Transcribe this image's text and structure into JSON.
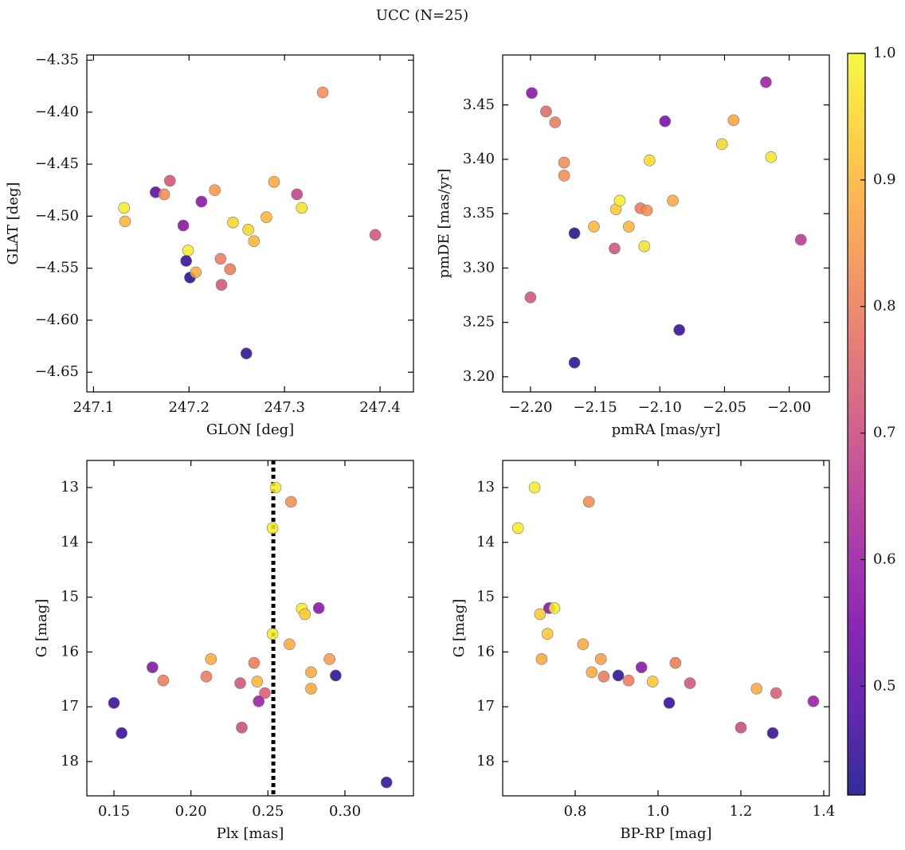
{
  "title": "UCC (N=25)",
  "chart_data": [
    {
      "type": "scatter",
      "xlabel": "GLON [deg]",
      "ylabel": "GLAT [deg]",
      "x": [
        247.34,
        247.132,
        247.133,
        247.165,
        247.174,
        247.18,
        247.213,
        247.194,
        247.199,
        247.197,
        247.201,
        247.207,
        247.227,
        247.233,
        247.243,
        247.234,
        247.246,
        247.262,
        247.268,
        247.281,
        247.289,
        247.313,
        247.318,
        247.26,
        247.395
      ],
      "y": [
        -4.381,
        -4.492,
        -4.505,
        -4.477,
        -4.479,
        -4.466,
        -4.486,
        -4.509,
        -4.533,
        -4.543,
        -4.559,
        -4.554,
        -4.475,
        -4.541,
        -4.551,
        -4.566,
        -4.506,
        -4.513,
        -4.524,
        -4.501,
        -4.467,
        -4.479,
        -4.492,
        -4.632,
        -4.518
      ],
      "c": [
        0.83,
        0.98,
        0.9,
        0.5,
        0.83,
        0.72,
        0.57,
        0.57,
        0.98,
        0.45,
        0.43,
        0.88,
        0.85,
        0.8,
        0.8,
        0.72,
        0.95,
        0.95,
        0.9,
        0.9,
        0.88,
        0.68,
        0.97,
        0.44,
        0.72
      ],
      "xlim": [
        247.093,
        247.435
      ],
      "ylim": [
        -4.669,
        -4.345
      ],
      "xticks": [
        247.1,
        247.2,
        247.3,
        247.4
      ],
      "yticks": [
        {
          "value": -4.65,
          "label": "−4.65"
        },
        {
          "value": -4.6,
          "label": "−4.60"
        },
        {
          "value": -4.55,
          "label": "−4.55"
        },
        {
          "value": -4.5,
          "label": "−4.50"
        },
        {
          "value": -4.45,
          "label": "−4.45"
        },
        {
          "value": -4.4,
          "label": "−4.40"
        },
        {
          "value": -4.35,
          "label": "−4.35"
        }
      ]
    },
    {
      "type": "scatter",
      "xlabel": "pmRA [mas/yr]",
      "ylabel": "pmDE [mas/yr]",
      "x": [
        -2.199,
        -2.188,
        -2.181,
        -2.174,
        -2.174,
        -2.2,
        -2.166,
        -2.166,
        -2.151,
        -2.135,
        -2.134,
        -2.131,
        -2.124,
        -2.115,
        -2.11,
        -2.112,
        -2.108,
        -2.096,
        -2.09,
        -2.085,
        -2.052,
        -2.043,
        -2.018,
        -2.014,
        -1.991
      ],
      "y": [
        3.461,
        3.444,
        3.434,
        3.397,
        3.385,
        3.273,
        3.213,
        3.332,
        3.338,
        3.318,
        3.354,
        3.362,
        3.338,
        3.355,
        3.353,
        3.32,
        3.399,
        3.435,
        3.362,
        3.243,
        3.414,
        3.436,
        3.471,
        3.402,
        3.326
      ],
      "c": [
        0.57,
        0.76,
        0.8,
        0.83,
        0.83,
        0.72,
        0.44,
        0.43,
        0.9,
        0.72,
        0.93,
        0.98,
        0.9,
        0.8,
        0.83,
        0.97,
        0.96,
        0.55,
        0.88,
        0.45,
        0.95,
        0.87,
        0.6,
        0.97,
        0.66
      ],
      "xlim": [
        -2.2215,
        -1.969
      ],
      "ylim": [
        3.186,
        3.496
      ],
      "xticks": [
        {
          "value": -2.2,
          "label": "−2.20"
        },
        {
          "value": -2.15,
          "label": "−2.15"
        },
        {
          "value": -2.1,
          "label": "−2.10"
        },
        {
          "value": -2.05,
          "label": "−2.05"
        },
        {
          "value": -2.0,
          "label": "−2.00"
        }
      ],
      "yticks": [
        {
          "value": 3.2,
          "label": "3.20"
        },
        3.25,
        {
          "value": 3.3,
          "label": "3.30"
        },
        3.35,
        {
          "value": 3.4,
          "label": "3.40"
        },
        3.45
      ]
    },
    {
      "type": "scatter",
      "xlabel": "Plx [mas]",
      "ylabel": "G [mag]",
      "x": [
        0.255,
        0.265,
        0.253,
        0.272,
        0.274,
        0.283,
        0.253,
        0.264,
        0.213,
        0.29,
        0.175,
        0.241,
        0.278,
        0.294,
        0.21,
        0.182,
        0.232,
        0.243,
        0.278,
        0.248,
        0.244,
        0.15,
        0.233,
        0.155,
        0.327
      ],
      "y": [
        13.0,
        13.26,
        13.74,
        15.21,
        15.31,
        15.2,
        15.67,
        15.86,
        16.13,
        16.13,
        16.28,
        16.2,
        16.37,
        16.43,
        16.45,
        16.52,
        16.57,
        16.54,
        16.67,
        16.75,
        16.9,
        16.93,
        17.38,
        17.48,
        18.38
      ],
      "c": [
        0.98,
        0.83,
        0.98,
        0.98,
        0.93,
        0.57,
        0.98,
        0.88,
        0.88,
        0.86,
        0.57,
        0.8,
        0.88,
        0.44,
        0.8,
        0.8,
        0.72,
        0.9,
        0.88,
        0.74,
        0.6,
        0.45,
        0.7,
        0.45,
        0.45
      ],
      "xlim": [
        0.1324,
        0.3445
      ],
      "ylim": [
        18.625,
        12.506
      ],
      "xticks": [
        0.15,
        {
          "value": 0.2,
          "label": "0.20"
        },
        0.25,
        {
          "value": 0.3,
          "label": "0.30"
        }
      ],
      "yticks": [
        13,
        14,
        15,
        16,
        17,
        18
      ],
      "vline": 0.2535
    },
    {
      "type": "scatter",
      "xlabel": "BP-RP [mag]",
      "ylabel": "G [mag]",
      "x": [
        0.702,
        0.833,
        0.662,
        0.737,
        0.715,
        0.75,
        0.733,
        0.819,
        0.719,
        0.862,
        0.96,
        1.042,
        0.84,
        0.904,
        0.869,
        0.929,
        0.987,
        1.077,
        1.238,
        1.285,
        1.375,
        1.027,
        1.2,
        1.277
      ],
      "y": [
        13.0,
        13.26,
        13.74,
        15.2,
        15.31,
        15.2,
        15.67,
        15.86,
        16.13,
        16.13,
        16.28,
        16.2,
        16.37,
        16.43,
        16.45,
        16.52,
        16.54,
        16.57,
        16.67,
        16.75,
        16.9,
        16.93,
        17.38,
        17.48
      ],
      "c": [
        0.98,
        0.83,
        0.98,
        0.57,
        0.93,
        0.98,
        0.93,
        0.88,
        0.88,
        0.86,
        0.57,
        0.8,
        0.88,
        0.44,
        0.8,
        0.8,
        0.93,
        0.72,
        0.88,
        0.74,
        0.6,
        0.45,
        0.7,
        0.45
      ],
      "xlim": [
        0.625,
        1.4135
      ],
      "ylim": [
        18.625,
        12.506
      ],
      "xticks": [
        0.8,
        {
          "value": 1.0,
          "label": "1.0"
        },
        1.2,
        1.4
      ],
      "yticks": [
        13,
        14,
        15,
        16,
        17,
        18
      ]
    }
  ],
  "colorbar": {
    "clim": [
      0.414,
      1.0
    ],
    "ticks": [
      0.5,
      0.6,
      0.7,
      0.8,
      0.9,
      {
        "value": 1.0,
        "label": "1.0"
      }
    ],
    "colormap": [
      "#0d0887",
      "#46039f",
      "#7201a8",
      "#9c179e",
      "#bd3786",
      "#d8576b",
      "#ed7953",
      "#fb9f3a",
      "#fdca26",
      "#f0f921"
    ]
  }
}
